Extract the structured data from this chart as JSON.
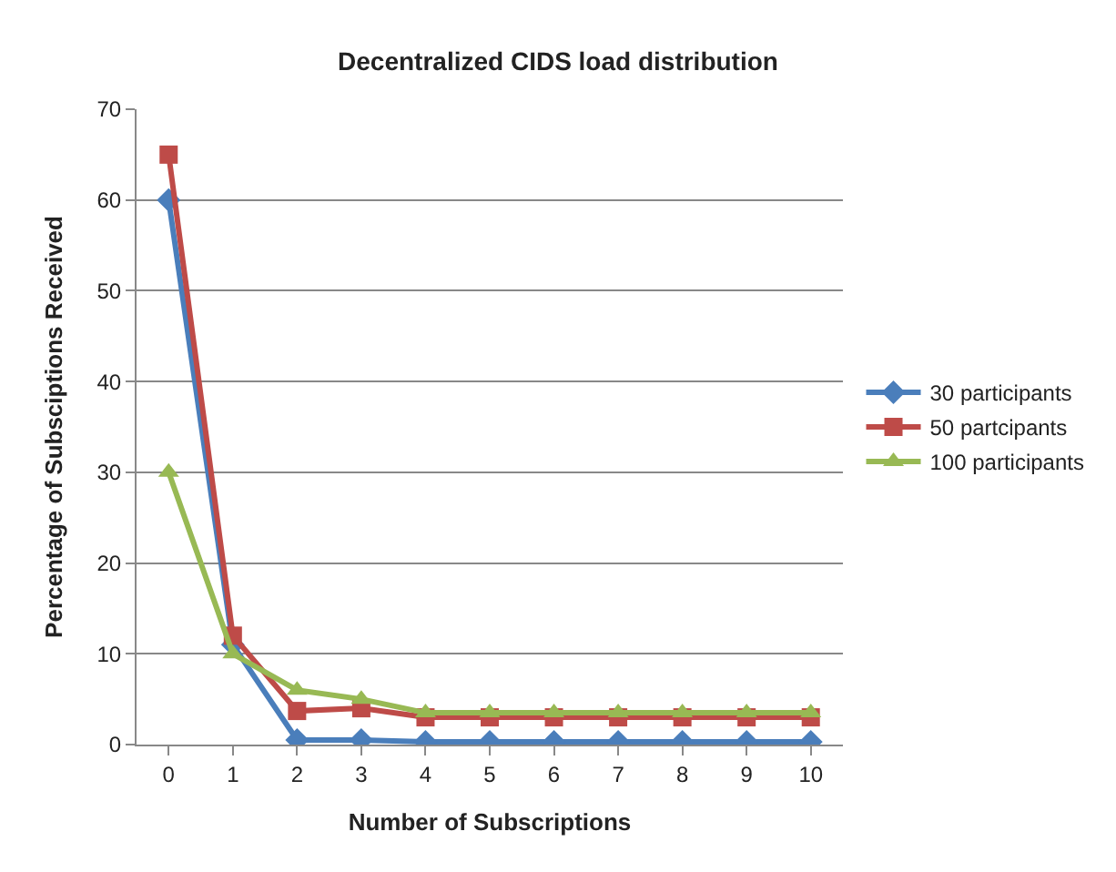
{
  "chart_data": {
    "type": "line",
    "title": "Decentralized CIDS load distribution",
    "xlabel": "Number of Subscriptions",
    "ylabel": "Percentage of Subsciptions Received",
    "categories": [
      "0",
      "1",
      "2",
      "3",
      "4",
      "5",
      "6",
      "7",
      "8",
      "9",
      "10"
    ],
    "series": [
      {
        "name": "30 participants",
        "color": "#4a7ebb",
        "marker": "diamond",
        "values": [
          60,
          11,
          0.5,
          0.5,
          0.3,
          0.3,
          0.3,
          0.3,
          0.3,
          0.3,
          0.3
        ]
      },
      {
        "name": "50 partcipants",
        "color": "#be4b48",
        "marker": "square",
        "values": [
          65,
          12,
          3.7,
          4,
          3,
          3,
          3,
          3,
          3,
          3,
          3
        ]
      },
      {
        "name": "100 participants",
        "color": "#98b954",
        "marker": "triangle",
        "values": [
          30,
          10,
          6,
          5,
          3.5,
          3.5,
          3.5,
          3.5,
          3.5,
          3.5,
          3.5
        ]
      }
    ],
    "ylim": [
      0,
      70
    ],
    "yticks": [
      0,
      10,
      20,
      30,
      40,
      50,
      60,
      70
    ],
    "grid": "y",
    "legend": "right",
    "line_style": "solid"
  }
}
